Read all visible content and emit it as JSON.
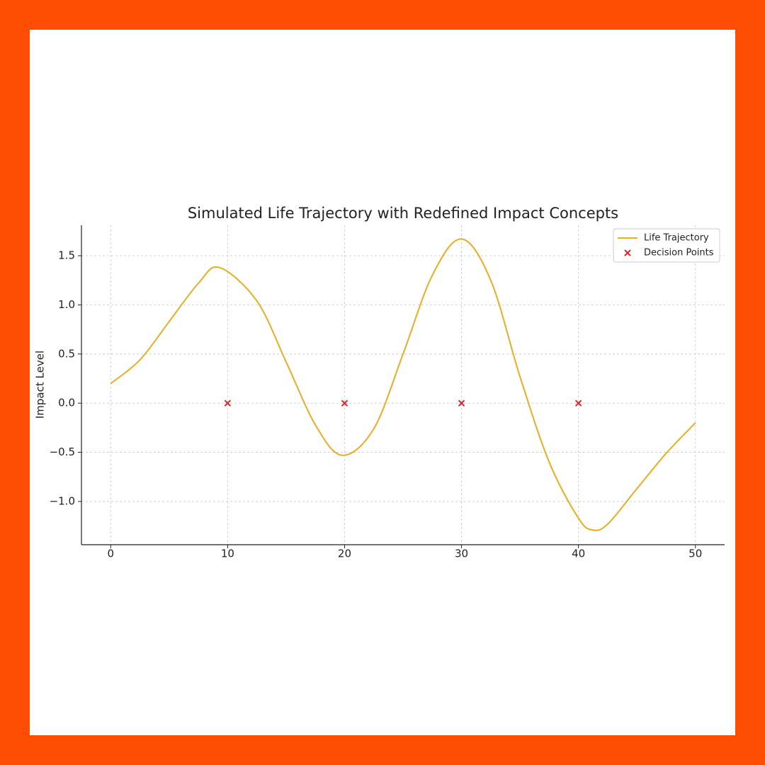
{
  "chart_data": {
    "type": "line",
    "title": "Simulated Life Trajectory with Redefined Impact Concepts",
    "y_label": "Impact Level",
    "xlim": [
      -2.5,
      52.5
    ],
    "ylim": [
      -1.44,
      1.81
    ],
    "xticks": [
      0,
      10,
      20,
      30,
      40,
      50
    ],
    "yticks": [
      {
        "value": -1.0,
        "label": "−1.0"
      },
      {
        "value": -0.5,
        "label": "−0.5"
      },
      {
        "value": 0.0,
        "label": "0.0"
      },
      {
        "value": 0.5,
        "label": "0.5"
      },
      {
        "value": 1.0,
        "label": "1.0"
      },
      {
        "value": 1.5,
        "label": "1.5"
      }
    ],
    "grid": true,
    "legend": "upper right",
    "series": [
      {
        "name": "Life Trajectory",
        "type": "line",
        "color": "#e8ad22",
        "x": [
          0,
          2.5,
          5,
          7.5,
          9.3,
          12.5,
          15,
          17.5,
          19.8,
          22.5,
          25,
          27.5,
          30,
          32.5,
          35,
          37.5,
          40,
          41.2,
          42.5,
          45,
          47.5,
          50
        ],
        "values": [
          0.2,
          0.44,
          0.83,
          1.22,
          1.38,
          1.04,
          0.42,
          -0.22,
          -0.53,
          -0.26,
          0.5,
          1.3,
          1.67,
          1.25,
          0.27,
          -0.6,
          -1.17,
          -1.29,
          -1.23,
          -0.87,
          -0.51,
          -0.2
        ]
      },
      {
        "name": "Decision Points",
        "type": "scatter",
        "color": "#d62728",
        "x": [
          10,
          20,
          30,
          40
        ],
        "values": [
          0,
          0,
          0,
          0
        ]
      }
    ]
  }
}
